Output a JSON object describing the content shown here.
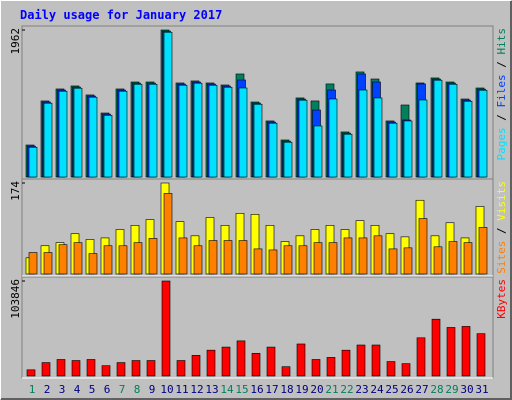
{
  "chart_data": [
    {
      "type": "bar",
      "title": "Daily usage for January 2017",
      "categories": [
        "1",
        "2",
        "3",
        "4",
        "5",
        "6",
        "7",
        "8",
        "9",
        "10",
        "11",
        "12",
        "13",
        "14",
        "15",
        "16",
        "17",
        "18",
        "19",
        "20",
        "21",
        "22",
        "23",
        "24",
        "25",
        "26",
        "27",
        "28",
        "29",
        "30",
        "31"
      ],
      "category_colors": [
        "#00805c",
        "#000080",
        "#000080",
        "#000080",
        "#000080",
        "#000080",
        "#00805c",
        "#00805c",
        "#000080",
        "#000080",
        "#000080",
        "#000080",
        "#000080",
        "#00805c",
        "#00805c",
        "#000080",
        "#000080",
        "#000080",
        "#000080",
        "#000080",
        "#00805c",
        "#00805c",
        "#000080",
        "#000080",
        "#000080",
        "#000080",
        "#000080",
        "#00805c",
        "#00805c",
        "#000080",
        "#000080"
      ],
      "legend_separator": " / ",
      "ylim": [
        0,
        1962
      ],
      "yticks": [
        1962
      ],
      "series": [
        {
          "name": "Hits",
          "color": "#00805c",
          "values": [
            427,
            1015,
            1175,
            1215,
            1095,
            854,
            1175,
            1268,
            1268,
            1962,
            1255,
            1282,
            1255,
            1228,
            1375,
            1001,
            748,
            494,
            1055,
            1015,
            1242,
            601,
            1402,
            1308,
            748,
            961,
            1255,
            1322,
            1268,
            1041,
            1188
          ]
        },
        {
          "name": "Files",
          "color": "#0040ff",
          "values": [
            412,
            1000,
            1160,
            1200,
            1080,
            839,
            1160,
            1253,
            1253,
            1947,
            1240,
            1267,
            1240,
            1213,
            1295,
            986,
            733,
            479,
            1040,
            894,
            1161,
            586,
            1375,
            1268,
            733,
            761,
            1242,
            1307,
            1253,
            1026,
            1173
          ]
        },
        {
          "name": "Pages",
          "color": "#00e0ff",
          "values": [
            397,
            985,
            1145,
            1185,
            1065,
            824,
            1145,
            1238,
            1238,
            1932,
            1225,
            1252,
            1225,
            1198,
            1188,
            971,
            718,
            464,
            1025,
            681,
            1041,
            571,
            1161,
            1055,
            718,
            748,
            1028,
            1292,
            1238,
            1011,
            1158
          ]
        }
      ]
    },
    {
      "type": "bar",
      "ylim": [
        0,
        174
      ],
      "yticks": [
        174
      ],
      "series": [
        {
          "name": "Visits",
          "color": "#ffff00",
          "values": [
            31,
            54,
            60,
            77,
            66,
            69,
            85,
            93,
            104,
            174,
            100,
            73,
            108,
            93,
            116,
            114,
            93,
            62,
            73,
            85,
            93,
            85,
            102,
            93,
            77,
            71,
            141,
            73,
            98,
            69,
            129
          ]
        },
        {
          "name": "Sites",
          "color": "#ff8000",
          "values": [
            41,
            41,
            56,
            60,
            39,
            54,
            54,
            60,
            68,
            154,
            69,
            54,
            64,
            64,
            64,
            48,
            46,
            54,
            54,
            60,
            60,
            69,
            69,
            73,
            48,
            50,
            106,
            52,
            62,
            60,
            89
          ]
        }
      ]
    },
    {
      "type": "bar",
      "ylim": [
        0,
        103846
      ],
      "yticks": [
        103846
      ],
      "series": [
        {
          "name": "KBytes",
          "color": "#ff0000",
          "values": [
            6774,
            14677,
            18064,
            16935,
            18064,
            11290,
            14677,
            16935,
            16935,
            103846,
            16935,
            22580,
            28225,
            31612,
            38386,
            24838,
            31612,
            10161,
            34999,
            18064,
            20322,
            28225,
            33870,
            33870,
            15806,
            13548,
            41773,
            62095,
            53063,
            54192,
            46289
          ]
        }
      ]
    }
  ]
}
